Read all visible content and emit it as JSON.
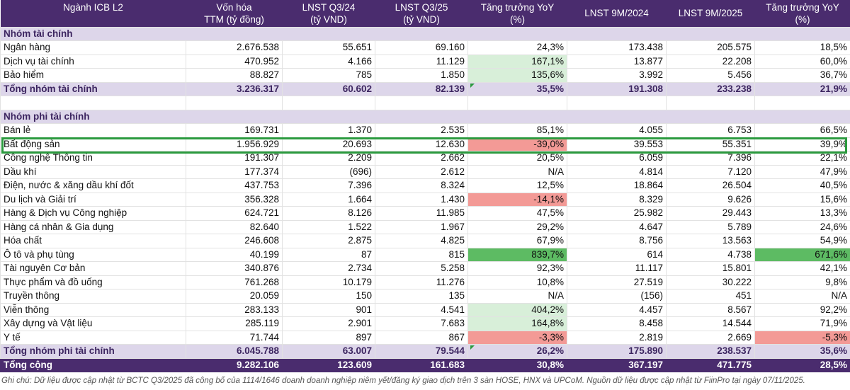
{
  "columns": [
    {
      "line1": "Ngành ICB L2",
      "line2": ""
    },
    {
      "line1": "Vốn hóa",
      "line2": "TTM (tỷ đồng)"
    },
    {
      "line1": "LNST Q3/24",
      "line2": "(tỷ VND)"
    },
    {
      "line1": "LNST Q3/25",
      "line2": "(tỷ VND)"
    },
    {
      "line1": "Tăng trưởng YoY",
      "line2": "(%)"
    },
    {
      "line1": "LNST 9M/2024",
      "line2": ""
    },
    {
      "line1": "LNST 9M/2025",
      "line2": ""
    },
    {
      "line1": "Tăng trưởng YoY",
      "line2": "(%)"
    }
  ],
  "colors": {
    "header_bg": "#4a2c6e",
    "group_bg": "#ddd6ea",
    "green_light": "#d8efd9",
    "green_strong": "#5dbb63",
    "red": "#f39a96",
    "highlight_border": "#2b9a3e"
  },
  "rows": [
    {
      "type": "group",
      "name": "Nhóm tài chính"
    },
    {
      "type": "data",
      "name": "Ngân hàng",
      "cap": "2.676.538",
      "q324": "55.651",
      "q325": "69.160",
      "yoy_q": "24,3%",
      "m24": "173.438",
      "m25": "205.575",
      "yoy_m": "18,5%",
      "shade_q": "",
      "shade_m": ""
    },
    {
      "type": "data",
      "name": "Dịch vụ tài chính",
      "cap": "470.952",
      "q324": "4.166",
      "q325": "11.129",
      "yoy_q": "167,1%",
      "m24": "13.877",
      "m25": "22.208",
      "yoy_m": "60,0%",
      "shade_q": "g-light",
      "shade_m": ""
    },
    {
      "type": "data",
      "name": "Bảo hiểm",
      "cap": "88.827",
      "q324": "785",
      "q325": "1.850",
      "yoy_q": "135,6%",
      "m24": "3.992",
      "m25": "5.456",
      "yoy_m": "36,7%",
      "shade_q": "g-light",
      "shade_m": ""
    },
    {
      "type": "subtotal",
      "name": "Tổng nhóm tài chính",
      "cap": "3.236.317",
      "q324": "60.602",
      "q325": "82.139",
      "yoy_q": "35,5%",
      "m24": "191.308",
      "m25": "233.238",
      "yoy_m": "21,9%",
      "shade_q": "",
      "shade_m": ""
    },
    {
      "type": "blank"
    },
    {
      "type": "group",
      "name": "Nhóm phi tài chính"
    },
    {
      "type": "data",
      "name": "Bán lẻ",
      "cap": "169.731",
      "q324": "1.370",
      "q325": "2.535",
      "yoy_q": "85,1%",
      "m24": "4.055",
      "m25": "6.753",
      "yoy_m": "66,5%",
      "shade_q": "",
      "shade_m": ""
    },
    {
      "type": "data",
      "name": "Bất động sản",
      "cap": "1.956.929",
      "q324": "20.693",
      "q325": "12.630",
      "yoy_q": "-39,0%",
      "m24": "39.553",
      "m25": "55.351",
      "yoy_m": "39,9%",
      "shade_q": "r",
      "shade_m": ""
    },
    {
      "type": "data",
      "name": "Công nghệ Thông tin",
      "cap": "191.307",
      "q324": "2.209",
      "q325": "2.662",
      "yoy_q": "20,5%",
      "m24": "6.059",
      "m25": "7.396",
      "yoy_m": "22,1%",
      "shade_q": "",
      "shade_m": ""
    },
    {
      "type": "data",
      "name": "Dầu khí",
      "cap": "177.374",
      "q324": "(696)",
      "q325": "2.612",
      "yoy_q": "N/A",
      "m24": "4.814",
      "m25": "7.120",
      "yoy_m": "47,9%",
      "shade_q": "",
      "shade_m": ""
    },
    {
      "type": "data",
      "name": "Điện, nước & xăng dầu khí đốt",
      "cap": "437.753",
      "q324": "7.396",
      "q325": "8.324",
      "yoy_q": "12,5%",
      "m24": "18.864",
      "m25": "26.504",
      "yoy_m": "40,5%",
      "shade_q": "",
      "shade_m": ""
    },
    {
      "type": "data",
      "name": "Du lịch và Giải trí",
      "cap": "356.328",
      "q324": "1.664",
      "q325": "1.430",
      "yoy_q": "-14,1%",
      "m24": "8.329",
      "m25": "9.626",
      "yoy_m": "15,6%",
      "shade_q": "r",
      "shade_m": ""
    },
    {
      "type": "data",
      "name": "Hàng & Dịch vụ Công nghiệp",
      "cap": "624.721",
      "q324": "8.126",
      "q325": "11.985",
      "yoy_q": "47,5%",
      "m24": "25.982",
      "m25": "29.443",
      "yoy_m": "13,3%",
      "shade_q": "",
      "shade_m": ""
    },
    {
      "type": "data",
      "name": "Hàng cá nhân & Gia dụng",
      "cap": "82.640",
      "q324": "1.522",
      "q325": "1.967",
      "yoy_q": "29,2%",
      "m24": "4.647",
      "m25": "5.789",
      "yoy_m": "24,6%",
      "shade_q": "",
      "shade_m": ""
    },
    {
      "type": "data",
      "name": "Hóa chất",
      "cap": "246.608",
      "q324": "2.875",
      "q325": "4.825",
      "yoy_q": "67,9%",
      "m24": "8.756",
      "m25": "13.563",
      "yoy_m": "54,9%",
      "shade_q": "",
      "shade_m": ""
    },
    {
      "type": "data",
      "name": "Ô tô và phụ tùng",
      "cap": "40.199",
      "q324": "87",
      "q325": "815",
      "yoy_q": "839,7%",
      "m24": "614",
      "m25": "4.738",
      "yoy_m": "671,6%",
      "shade_q": "g-strong",
      "shade_m": "g-strong"
    },
    {
      "type": "data",
      "name": "Tài nguyên Cơ bản",
      "cap": "340.876",
      "q324": "2.734",
      "q325": "5.258",
      "yoy_q": "92,3%",
      "m24": "11.117",
      "m25": "15.801",
      "yoy_m": "42,1%",
      "shade_q": "",
      "shade_m": ""
    },
    {
      "type": "data",
      "name": "Thực phẩm và đồ uống",
      "cap": "761.268",
      "q324": "10.179",
      "q325": "11.276",
      "yoy_q": "10,8%",
      "m24": "27.519",
      "m25": "30.222",
      "yoy_m": "9,8%",
      "shade_q": "",
      "shade_m": ""
    },
    {
      "type": "data",
      "name": "Truyền thông",
      "cap": "20.059",
      "q324": "150",
      "q325": "135",
      "yoy_q": "N/A",
      "m24": "(156)",
      "m25": "451",
      "yoy_m": "N/A",
      "shade_q": "",
      "shade_m": ""
    },
    {
      "type": "data",
      "name": "Viễn thông",
      "cap": "283.133",
      "q324": "901",
      "q325": "4.541",
      "yoy_q": "404,2%",
      "m24": "4.457",
      "m25": "8.567",
      "yoy_m": "92,2%",
      "shade_q": "g-light",
      "shade_m": ""
    },
    {
      "type": "data",
      "name": "Xây dựng và Vật liệu",
      "cap": "285.119",
      "q324": "2.901",
      "q325": "7.683",
      "yoy_q": "164,8%",
      "m24": "8.458",
      "m25": "14.544",
      "yoy_m": "71,9%",
      "shade_q": "g-light",
      "shade_m": ""
    },
    {
      "type": "data",
      "name": "Y tế",
      "cap": "71.744",
      "q324": "897",
      "q325": "867",
      "yoy_q": "-3,3%",
      "m24": "2.819",
      "m25": "2.669",
      "yoy_m": "-5,3%",
      "shade_q": "r",
      "shade_m": "r"
    },
    {
      "type": "subtotal",
      "name": "Tổng nhóm phi tài chính",
      "cap": "6.045.788",
      "q324": "63.007",
      "q325": "79.544",
      "yoy_q": "26,2%",
      "m24": "175.890",
      "m25": "238.537",
      "yoy_m": "35,6%",
      "shade_q": "",
      "shade_m": ""
    },
    {
      "type": "total",
      "name": "Tổng cộng",
      "cap": "9.282.106",
      "q324": "123.609",
      "q325": "161.683",
      "yoy_q": "30,8%",
      "m24": "367.197",
      "m25": "471.775",
      "yoy_m": "28,5%",
      "shade_q": "",
      "shade_m": ""
    }
  ],
  "note": "Ghi chú: Dữ liệu được cập nhật từ BCTC Q3/2025 đã công bố của 1114/1646 doanh doanh nghiệp niêm yết/đăng ký giao dịch trên 3 sàn HOSE, HNX và UPCoM. Nguồn dữ liệu được cập nhật từ FiinPro tại ngày 07/11/2025."
}
